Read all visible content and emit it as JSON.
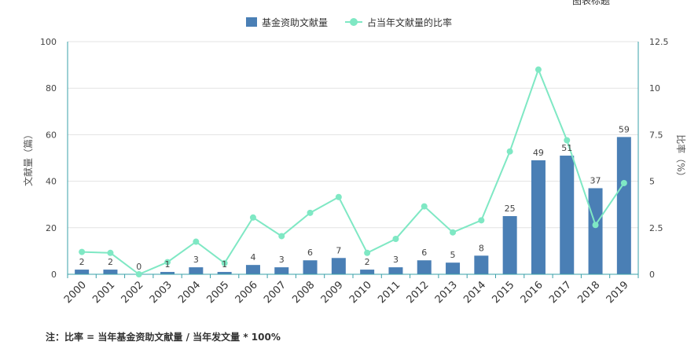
{
  "corner_text": "图表标题",
  "note": "注：比率 = 当年基金资助文献量 / 当年发文量 * 100%",
  "chart_data": {
    "type": "bar",
    "categories": [
      "2000",
      "2001",
      "2002",
      "2003",
      "2004",
      "2005",
      "2006",
      "2007",
      "2008",
      "2009",
      "2010",
      "2011",
      "2012",
      "2013",
      "2014",
      "2015",
      "2016",
      "2017",
      "2018",
      "2019"
    ],
    "series": [
      {
        "name": "基金资助文献量",
        "type": "bar",
        "axis": "left",
        "color": "#4a7fb5",
        "values": [
          2,
          2,
          0,
          1,
          3,
          1,
          4,
          3,
          6,
          7,
          2,
          3,
          6,
          5,
          8,
          25,
          49,
          51,
          37,
          59
        ]
      },
      {
        "name": "占当年文献量的比率",
        "type": "line",
        "axis": "right",
        "color": "#7fe8c4",
        "values": [
          1.2,
          1.15,
          0,
          0.65,
          1.75,
          0.6,
          3.05,
          2.05,
          3.3,
          4.15,
          1.15,
          1.9,
          3.65,
          2.25,
          2.9,
          6.6,
          11.0,
          7.2,
          2.65,
          4.9
        ]
      }
    ],
    "ylabel": "文献量（篇）",
    "y2label": "比率（%）",
    "ylim": [
      0,
      100
    ],
    "yticks": [
      "0",
      "20",
      "40",
      "60",
      "80",
      "100"
    ],
    "y2lim": [
      0,
      12.5
    ],
    "y2ticks": [
      "0",
      "2.5",
      "5",
      "7.5",
      "10",
      "12.5"
    ],
    "grid": true,
    "legend": "top-center"
  }
}
